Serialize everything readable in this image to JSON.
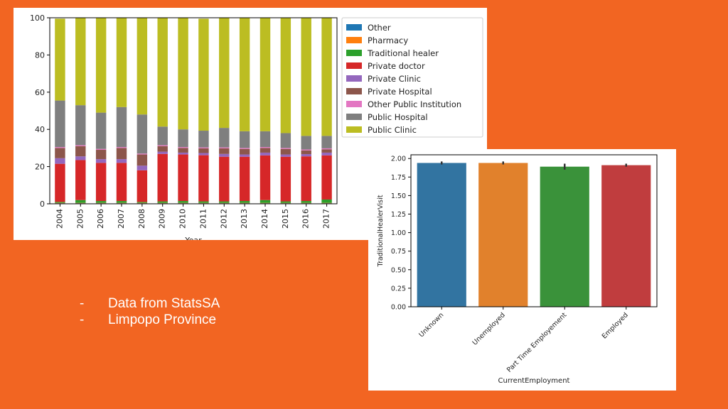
{
  "slide": {
    "bullets": [
      "Data from StatsSA",
      "Limpopo Province"
    ],
    "background": "#f26522"
  },
  "chart_data": [
    {
      "type": "bar",
      "stacked": true,
      "xlabel": "Year",
      "ylabel": "",
      "ylim": [
        0,
        100
      ],
      "yticks": [
        0,
        20,
        40,
        60,
        80,
        100
      ],
      "grid": false,
      "legend": "right",
      "categories": [
        "2004",
        "2005",
        "2006",
        "2007",
        "2008",
        "2009",
        "2010",
        "2011",
        "2012",
        "2013",
        "2014",
        "2015",
        "2016",
        "2017"
      ],
      "series": [
        {
          "name": "Other",
          "color": "#1f77b4",
          "values": [
            0.3,
            0.3,
            0.3,
            0.3,
            0.3,
            0.3,
            0.3,
            0.3,
            0.3,
            0.3,
            0.3,
            0.3,
            0.3,
            0.3
          ]
        },
        {
          "name": "Pharmacy",
          "color": "#ff7f0e",
          "values": [
            0.2,
            0.2,
            0.2,
            0.2,
            0.2,
            0.2,
            0.2,
            0.2,
            0.2,
            0.2,
            0.2,
            0.2,
            0.2,
            0.2
          ]
        },
        {
          "name": "Traditional healer",
          "color": "#2ca02c",
          "values": [
            0.5,
            1.5,
            1.0,
            1.0,
            0.5,
            0.8,
            1.0,
            0.8,
            0.8,
            1.0,
            1.5,
            0.8,
            1.0,
            1.8
          ]
        },
        {
          "name": "Private doctor",
          "color": "#d62728",
          "values": [
            20.5,
            21.5,
            20.5,
            20.5,
            17.0,
            25.5,
            25.0,
            24.8,
            24.0,
            23.8,
            24.0,
            24.0,
            24.0,
            23.7
          ]
        },
        {
          "name": "Private Clinic",
          "color": "#9467bd",
          "values": [
            3.0,
            2.0,
            2.0,
            2.0,
            2.5,
            1.2,
            1.0,
            1.2,
            1.5,
            1.2,
            1.5,
            1.2,
            1.2,
            1.5
          ]
        },
        {
          "name": "Private Hospital",
          "color": "#8c564b",
          "values": [
            5.5,
            5.5,
            5.0,
            6.0,
            6.0,
            3.0,
            2.5,
            2.5,
            3.0,
            3.0,
            2.5,
            3.0,
            2.0,
            1.8
          ]
        },
        {
          "name": "Other Public Institution",
          "color": "#e377c2",
          "values": [
            0.5,
            0.5,
            0.5,
            0.5,
            0.5,
            0.5,
            0.5,
            0.5,
            0.5,
            0.5,
            0.5,
            0.5,
            0.5,
            0.5
          ]
        },
        {
          "name": "Public Hospital",
          "color": "#7f7f7f",
          "values": [
            25.0,
            21.5,
            19.5,
            21.5,
            21.0,
            10.0,
            9.5,
            9.0,
            10.5,
            9.0,
            8.5,
            8.0,
            7.3,
            6.7
          ]
        },
        {
          "name": "Public Clinic",
          "color": "#bcbd22",
          "values": [
            44.0,
            47.0,
            51.0,
            48.0,
            52.0,
            58.5,
            60.0,
            60.2,
            59.2,
            61.0,
            61.0,
            62.0,
            63.5,
            63.5
          ]
        }
      ]
    },
    {
      "type": "bar",
      "xlabel": "CurrentEmployment",
      "ylabel": "TraditionalHealerVisit",
      "ylim": [
        0,
        2.05
      ],
      "yticks": [
        0.0,
        0.25,
        0.5,
        0.75,
        1.0,
        1.25,
        1.5,
        1.75,
        2.0
      ],
      "grid": false,
      "categories": [
        "Unknown",
        "Unemployed",
        "Part Time Employement",
        "Employed"
      ],
      "values": [
        1.94,
        1.94,
        1.89,
        1.91
      ],
      "errors": [
        [
          1.92,
          1.96
        ],
        [
          1.92,
          1.96
        ],
        [
          1.85,
          1.93
        ],
        [
          1.89,
          1.93
        ]
      ],
      "colors": [
        "#3274a1",
        "#e1812c",
        "#3a923a",
        "#c03d3e"
      ]
    }
  ]
}
